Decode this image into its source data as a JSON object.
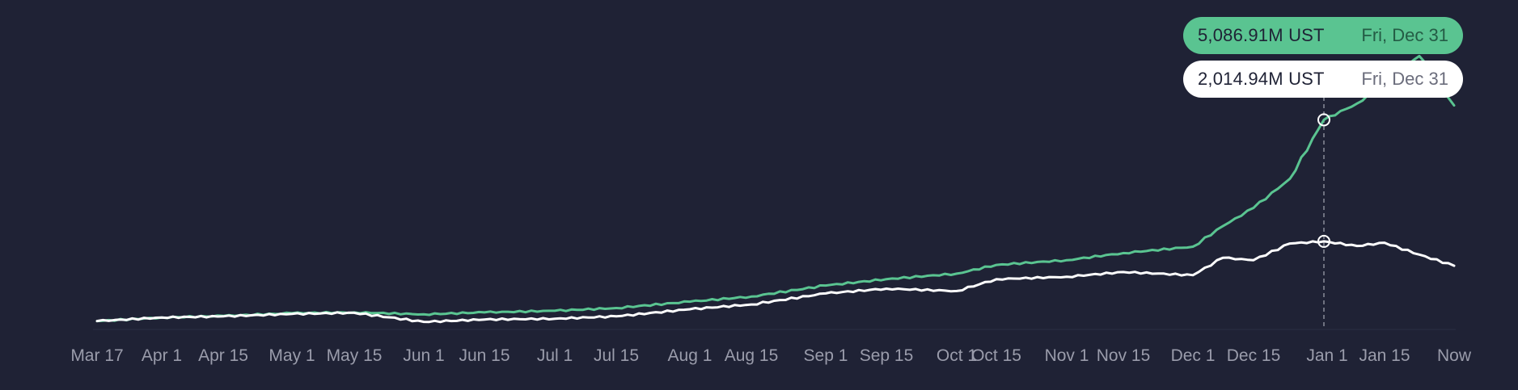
{
  "colors": {
    "background": "#1f2235",
    "green_series": "#5ac491",
    "white_series": "#ffffff",
    "tick_text": "#9a9cab",
    "crosshair": "#8a8c9a"
  },
  "tooltips": {
    "green": {
      "value": "5,086.91M UST",
      "date": "Fri, Dec 31"
    },
    "white": {
      "value": "2,014.94M UST",
      "date": "Fri, Dec 31"
    }
  },
  "chart_data": {
    "type": "line",
    "title": "",
    "xlabel": "",
    "ylabel": "",
    "x_tick_labels": [
      "Mar 17",
      "Apr 1",
      "Apr 15",
      "May 1",
      "May 15",
      "Jun 1",
      "Jun 15",
      "Jul 1",
      "Jul 15",
      "Aug 1",
      "Aug 15",
      "Sep 1",
      "Sep 15",
      "Oct 1",
      "Oct 15",
      "Nov 1",
      "Nov 15",
      "Dec 1",
      "Dec 15",
      "Jan 1",
      "Jan 15",
      "Now"
    ],
    "x": [
      "Mar 17",
      "Apr 1",
      "Apr 15",
      "May 1",
      "May 15",
      "Jun 1",
      "Jun 15",
      "Jul 1",
      "Jul 15",
      "Aug 1",
      "Aug 15",
      "Sep 1",
      "Sep 15",
      "Oct 1",
      "Oct 15",
      "Nov 1",
      "Nov 15",
      "Dec 1",
      "Dec 8",
      "Dec 15",
      "Dec 22",
      "Dec 31",
      "Jan 8",
      "Jan 15",
      "Jan 22",
      "Now"
    ],
    "series": [
      {
        "values": [
          0,
          90,
          130,
          200,
          220,
          170,
          220,
          260,
          330,
          490,
          620,
          900,
          1060,
          1200,
          1420,
          1540,
          1720,
          1880,
          2400,
          2860,
          3600,
          5086.91,
          5500,
          6000,
          6700,
          5450
        ]
      },
      {
        "values": [
          0,
          90,
          120,
          180,
          210,
          -20,
          40,
          60,
          120,
          300,
          420,
          700,
          820,
          760,
          1060,
          1120,
          1240,
          1160,
          1600,
          1540,
          1960,
          2014.94,
          1900,
          1980,
          1680,
          1400
        ]
      }
    ],
    "highlight": {
      "x": "Dec 31"
    },
    "ylim": [
      -150,
      7300
    ],
    "grid": false,
    "legend": "none"
  }
}
